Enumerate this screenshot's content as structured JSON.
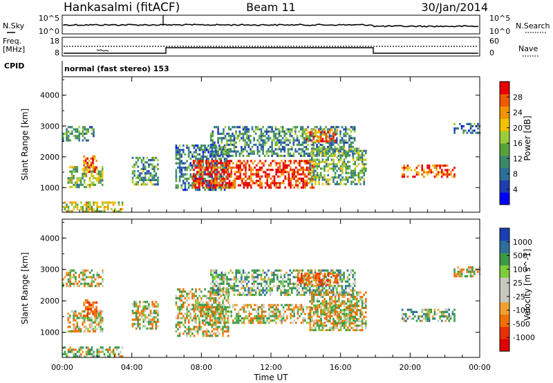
{
  "header": {
    "station": "Hankasalmi (fitACF)",
    "beam": "Beam 11",
    "date": "30/Jan/2014"
  },
  "noise_panel": {
    "left_label": "N.Sky",
    "right_label": "N.Search",
    "left_ticks": [
      "10^5",
      "10^0"
    ],
    "right_ticks": [
      "10^5",
      "10^0"
    ]
  },
  "freq_panel": {
    "left_label_line1": "Freq.",
    "left_label_line2": "[MHz]",
    "left_ticks": [
      "18",
      "8"
    ],
    "right_label": "Nave",
    "right_ticks": [
      "60",
      "0"
    ]
  },
  "cpid": {
    "label": "CPID",
    "mode_text": "normal (fast stereo) 153"
  },
  "colors": {
    "power_scale": [
      "#0000ff",
      "#1e3fb0",
      "#2e6f9c",
      "#3a8a6a",
      "#56a33c",
      "#9acd3a",
      "#f2c200",
      "#f29400",
      "#ee5a00",
      "#e60000"
    ],
    "velocity_scale": [
      "#1a3fb5",
      "#2e6f9c",
      "#3a9a48",
      "#7fcc3c",
      "#c8c8c0",
      "#c8c8c0",
      "#f0a030",
      "#f07000",
      "#e83000",
      "#e00000"
    ]
  },
  "chart_data": [
    {
      "type": "heatmap",
      "name": "Power",
      "ylabel": "Slant Range [km]",
      "yticks": [
        "1000",
        "2000",
        "3000",
        "4000"
      ],
      "ylim": [
        200,
        4600
      ],
      "colorbar_label": "Power [dB]",
      "colorbar_ticks": [
        "4",
        "8",
        "12",
        "16",
        "20",
        "24",
        "28"
      ],
      "colorbar_range": [
        0,
        30
      ],
      "regions": [
        {
          "t": [
            0.0,
            1.8
          ],
          "r": [
            2500,
            3000
          ],
          "level": 0.35
        },
        {
          "t": [
            0.3,
            2.3
          ],
          "r": [
            1000,
            1700
          ],
          "level": 0.5
        },
        {
          "t": [
            1.2,
            2.0
          ],
          "r": [
            1500,
            2050
          ],
          "level": 0.85
        },
        {
          "t": [
            0.0,
            3.5
          ],
          "r": [
            250,
            550
          ],
          "level": 0.6
        },
        {
          "t": [
            4.0,
            5.5
          ],
          "r": [
            1100,
            2000
          ],
          "level": 0.4
        },
        {
          "t": [
            6.5,
            9.5
          ],
          "r": [
            900,
            2400
          ],
          "level": 0.3
        },
        {
          "t": [
            7.5,
            14.5
          ],
          "r": [
            1000,
            1900
          ],
          "level": 0.92
        },
        {
          "t": [
            8.5,
            16.8
          ],
          "r": [
            2000,
            3000
          ],
          "level": 0.35
        },
        {
          "t": [
            14.0,
            15.8
          ],
          "r": [
            2500,
            2900
          ],
          "level": 0.85
        },
        {
          "t": [
            14.2,
            17.5
          ],
          "r": [
            1100,
            2300
          ],
          "level": 0.45
        },
        {
          "t": [
            19.5,
            22.5
          ],
          "r": [
            1350,
            1750
          ],
          "level": 0.85
        },
        {
          "t": [
            22.5,
            24.0
          ],
          "r": [
            2800,
            3100
          ],
          "level": 0.3
        }
      ]
    },
    {
      "type": "heatmap",
      "name": "Velocity",
      "ylabel": "Slant Range [km]",
      "yticks": [
        "1000",
        "2000",
        "3000",
        "4000"
      ],
      "ylim": [
        200,
        4600
      ],
      "colorbar_label": "Velocity [m s^-1]",
      "colorbar_ticks": [
        "1000",
        "500",
        "100",
        "25",
        "-25",
        "-100",
        "-500",
        "-1000"
      ],
      "colorbar_range": [
        -1200,
        1200
      ],
      "regions": [
        {
          "t": [
            0.0,
            2.3
          ],
          "r": [
            2500,
            3000
          ],
          "v": 0
        },
        {
          "t": [
            0.3,
            2.3
          ],
          "r": [
            1000,
            1700
          ],
          "v": 0
        },
        {
          "t": [
            1.2,
            2.0
          ],
          "r": [
            1500,
            2050
          ],
          "v": -300
        },
        {
          "t": [
            0.0,
            3.5
          ],
          "r": [
            250,
            550
          ],
          "v": 60
        },
        {
          "t": [
            4.0,
            5.5
          ],
          "r": [
            1100,
            2000
          ],
          "v": 0
        },
        {
          "t": [
            6.5,
            9.5
          ],
          "r": [
            900,
            2400
          ],
          "v": 0
        },
        {
          "t": [
            7.5,
            17.0
          ],
          "r": [
            1300,
            1900
          ],
          "v": 0
        },
        {
          "t": [
            8.5,
            16.8
          ],
          "r": [
            2200,
            3000
          ],
          "v": 150
        },
        {
          "t": [
            13.5,
            15.8
          ],
          "r": [
            2500,
            2900
          ],
          "v": -300
        },
        {
          "t": [
            14.2,
            17.5
          ],
          "r": [
            1100,
            2300
          ],
          "v": 0
        },
        {
          "t": [
            19.5,
            22.5
          ],
          "r": [
            1350,
            1750
          ],
          "v": 150
        },
        {
          "t": [
            22.5,
            24.0
          ],
          "r": [
            2800,
            3100
          ],
          "v": 0
        }
      ]
    }
  ],
  "xaxis": {
    "label": "Time UT",
    "ticks": [
      "00:00",
      "04:00",
      "08:00",
      "12:00",
      "16:00",
      "20:00",
      "00:00"
    ]
  }
}
